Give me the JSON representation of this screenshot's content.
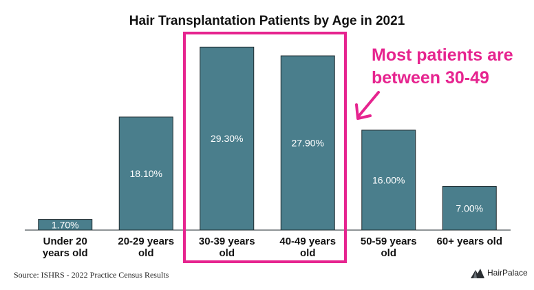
{
  "chart_data": {
    "type": "bar",
    "title": "Hair Transplantation Patients by Age in 2021",
    "categories": [
      [
        "Under 20",
        "years old"
      ],
      [
        "20-29 years",
        "old"
      ],
      [
        "30-39 years",
        "old"
      ],
      [
        "40-49 years",
        "old"
      ],
      [
        "50-59 years",
        "old"
      ],
      [
        "60+ years old"
      ]
    ],
    "values": [
      1.7,
      18.1,
      29.3,
      27.9,
      16.0,
      7.0
    ],
    "data_labels": [
      "1.70%",
      "18.10%",
      "29.30%",
      "27.90%",
      "16.00%",
      "7.00%"
    ],
    "ylim": [
      0,
      30
    ],
    "grid": false,
    "bar_color": "#4a7e8c",
    "annotation": {
      "text_lines": [
        "Most patients are",
        "between 30-49"
      ],
      "color": "#e6248f",
      "highlighted_categories": [
        "30-39 years old",
        "40-49 years old"
      ]
    }
  },
  "source": "Source: ISHRS - 2022 Practice Census Results",
  "brand": {
    "name": "HairPalace",
    "icon": "hairpalace-logo-icon"
  }
}
